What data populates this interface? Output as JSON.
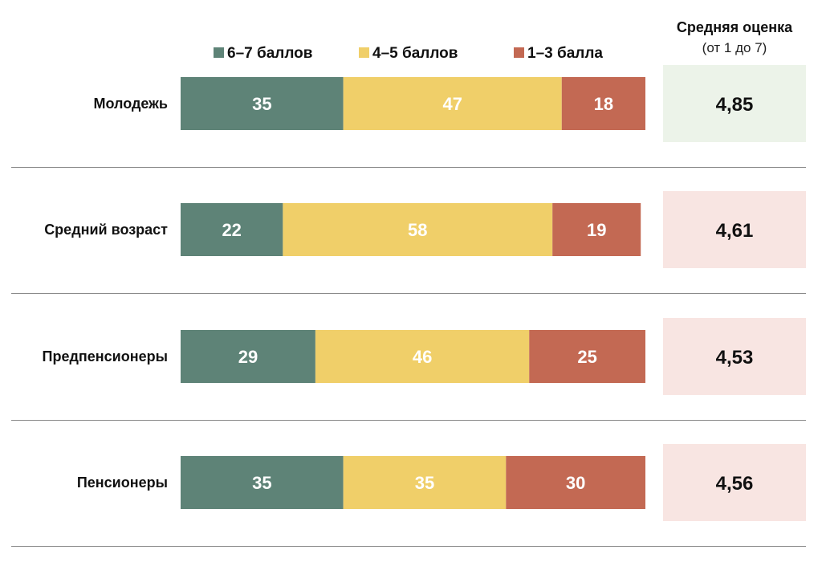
{
  "chart_data": {
    "type": "bar",
    "stacked": true,
    "orientation": "horizontal",
    "unit": "%",
    "categories": [
      "Молодежь",
      "Средний возраст",
      "Предпенсионеры",
      "Пенсионеры"
    ],
    "series": [
      {
        "name": "6–7 баллов",
        "color": "#5e8377",
        "values": [
          35,
          22,
          29,
          35
        ]
      },
      {
        "name": "4–5 баллов",
        "color": "#f0cf69",
        "values": [
          47,
          58,
          46,
          35
        ]
      },
      {
        "name": "1–3 балла",
        "color": "#c36953",
        "values": [
          18,
          19,
          25,
          30
        ]
      }
    ],
    "average": {
      "title": "Средняя оценка",
      "subtitle": "(от 1 до 7)",
      "values": [
        "4,85",
        "4,61",
        "4,53",
        "4,56"
      ],
      "box_colors": [
        "#ecf3e9",
        "#f8e5e2",
        "#f8e5e2",
        "#f8e5e2"
      ]
    },
    "legend": "top",
    "xlim": [
      0,
      100
    ]
  }
}
